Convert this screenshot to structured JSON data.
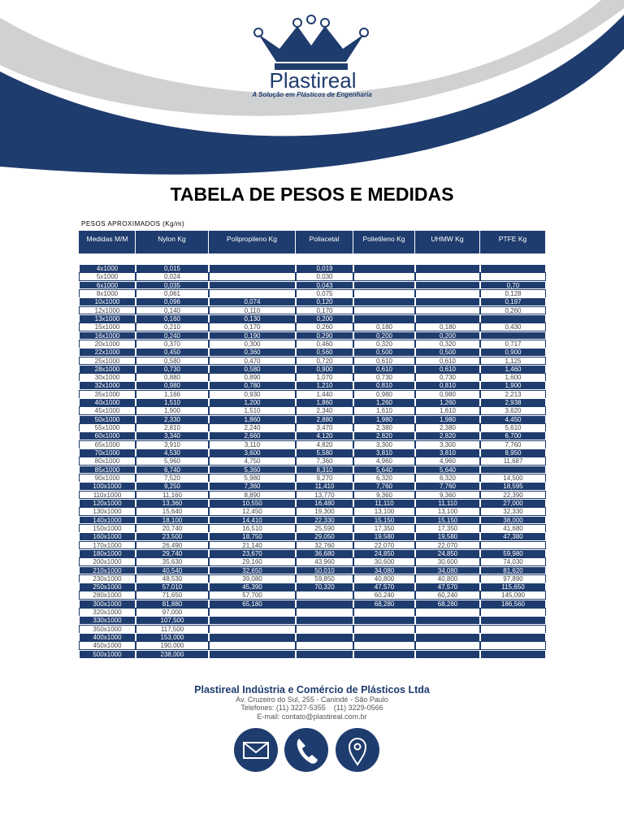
{
  "header": {
    "logo": "Plastireal",
    "tagline": "A Solução em Plásticos de Engenharia"
  },
  "title": "TABELA DE PESOS E MEDIDAS",
  "subtitle": "PESOS APROXIMADOS (Kg/m)",
  "table": {
    "columns": [
      "Medidas M/M",
      "Nylon Kg",
      "Polipropileno Kg",
      "Poliacetal",
      "Polietileno Kg",
      "UHMW Kg",
      "PTFE Kg"
    ],
    "rows": [
      [
        "4x1000",
        "0,015",
        null,
        "0,019",
        null,
        null,
        null
      ],
      [
        "5x1000",
        "0,024",
        null,
        "0,030",
        null,
        null,
        null
      ],
      [
        "6x1000",
        "0,035",
        null,
        "0,043",
        null,
        null,
        "0,70"
      ],
      [
        "8x1000",
        "0,061",
        null,
        "0,075",
        null,
        null,
        "0,128"
      ],
      [
        "10x1000",
        "0,096",
        "0,074",
        "0,120",
        null,
        null,
        "0,197"
      ],
      [
        "12x1000",
        "0,140",
        "0,110",
        "0,170",
        null,
        null,
        "0,260"
      ],
      [
        "13x1000",
        "0,160",
        "0,130",
        "0,200",
        null,
        null,
        null
      ],
      [
        "15x1000",
        "0,210",
        "0,170",
        "0,260",
        "0,180",
        "0,180",
        "0,430"
      ],
      [
        "16x1000",
        "0,240",
        "0,190",
        "0,290",
        "0,200",
        "0,200",
        null
      ],
      [
        "20x1000",
        "0,370",
        "0,300",
        "0,460",
        "0,320",
        "0,320",
        "0,717"
      ],
      [
        "22x1000",
        "0,450",
        "0,360",
        "0,560",
        "0,500",
        "0,500",
        "0,900"
      ],
      [
        "25x1000",
        "0,580",
        "0,470",
        "0,720",
        "0,610",
        "0,610",
        "1,125"
      ],
      [
        "28x1000",
        "0,730",
        "0,580",
        "0,900",
        "0,610",
        "0,610",
        "1,460"
      ],
      [
        "30x1000",
        "0,880",
        "0,890",
        "1,070",
        "0,730",
        "0,730",
        "1,600"
      ],
      [
        "32x1000",
        "0,980",
        "0,780",
        "1,210",
        "0,810",
        "0,810",
        "1,900"
      ],
      [
        "35x1000",
        "1,166",
        "0,930",
        "1,440",
        "0,980",
        "0,980",
        "2,213"
      ],
      [
        "40x1000",
        "1,510",
        "1,200",
        "1,860",
        "1,260",
        "1,260",
        "2,938"
      ],
      [
        "45x1000",
        "1,900",
        "1,510",
        "2,340",
        "1,610",
        "1,610",
        "3,620"
      ],
      [
        "50x1000",
        "2,330",
        "1,860",
        "2,880",
        "1,980",
        "1,980",
        "4,450"
      ],
      [
        "55x1000",
        "2,810",
        "2,240",
        "3,470",
        "2,380",
        "2,380",
        "5,610"
      ],
      [
        "60x1000",
        "3,340",
        "2,660",
        "4,120",
        "2,820",
        "2,820",
        "6,700"
      ],
      [
        "65x1000",
        "3,910",
        "3,110",
        "4,820",
        "3,300",
        "3,300",
        "7,760"
      ],
      [
        "70x1000",
        "4,530",
        "3,600",
        "5,580",
        "3,810",
        "3,810",
        "8,950"
      ],
      [
        "80x1000",
        "5,960",
        "4,750",
        "7,360",
        "4,960",
        "4,960",
        "11,687"
      ],
      [
        "85x1000",
        "6,740",
        "5,360",
        "8,310",
        "5,640",
        "5,640",
        null
      ],
      [
        "90x1000",
        "7,520",
        "5,980",
        "9,270",
        "6,320",
        "6,320",
        "14,500"
      ],
      [
        "100x1000",
        "9,250",
        "7,360",
        "11,410",
        "7,760",
        "7,760",
        "18,595"
      ],
      [
        "110x1000",
        "11,160",
        "8,890",
        "13,770",
        "9,360",
        "9,360",
        "22,390"
      ],
      [
        "120x1000",
        "13,360",
        "10,550",
        "16,480",
        "11,110",
        "11,110",
        "27,000"
      ],
      [
        "130x1000",
        "15,640",
        "12,450",
        "19,300",
        "13,100",
        "13,100",
        "32,330"
      ],
      [
        "140x1000",
        "18,100",
        "14,410",
        "22,330",
        "15,150",
        "15,150",
        "38,000"
      ],
      [
        "150x1000",
        "20,740",
        "16,510",
        "25,590",
        "17,350",
        "17,350",
        "41,680"
      ],
      [
        "160x1000",
        "23,500",
        "18,750",
        "29,050",
        "19,580",
        "19,580",
        "47,380"
      ],
      [
        "170x1000",
        "26,490",
        "21,140",
        "32,760",
        "22,070",
        "22,070",
        null
      ],
      [
        "180x1000",
        "29,740",
        "23,670",
        "36,680",
        "24,850",
        "24,850",
        "59,980"
      ],
      [
        "200x1000",
        "35,630",
        "29,160",
        "43,960",
        "30,600",
        "30,600",
        "74,030"
      ],
      [
        "210x1000",
        "40,540",
        "32,650",
        "50,010",
        "34,080",
        "34,080",
        "81,620"
      ],
      [
        "230x1000",
        "48,530",
        "39,080",
        "59,850",
        "40,800",
        "40,800",
        "97,890"
      ],
      [
        "250x1000",
        "57,010",
        "45,390",
        "70,320",
        "47,570",
        "47,570",
        "115,650"
      ],
      [
        "280x1000",
        "71,650",
        "57,700",
        null,
        "60,240",
        "60,240",
        "145,090"
      ],
      [
        "300x1000",
        "81,880",
        "65,180",
        null,
        "68,280",
        "68,280",
        "186,560"
      ],
      [
        "320x1000",
        "97,000",
        null,
        null,
        null,
        null,
        null
      ],
      [
        "330x1000",
        "107,500",
        null,
        null,
        null,
        null,
        null
      ],
      [
        "350x1000",
        "117,500",
        null,
        null,
        null,
        null,
        null
      ],
      [
        "400x1000",
        "153,000",
        null,
        null,
        null,
        null,
        null
      ],
      [
        "450x1000",
        "190,000",
        null,
        null,
        null,
        null,
        null
      ],
      [
        "500x1000",
        "238,000",
        null,
        null,
        null,
        null,
        null
      ]
    ]
  },
  "footer": {
    "company": "Plastireal Indústria e Comércio de Plásticos Ltda",
    "address": "Av. Cruzeiro do Sul, 255 - Canindé - São Paulo",
    "phones": "Telefones: (11) 3227-5355    (11) 3229-0566",
    "email": "E-mail: contato@plastireal.com.br"
  }
}
